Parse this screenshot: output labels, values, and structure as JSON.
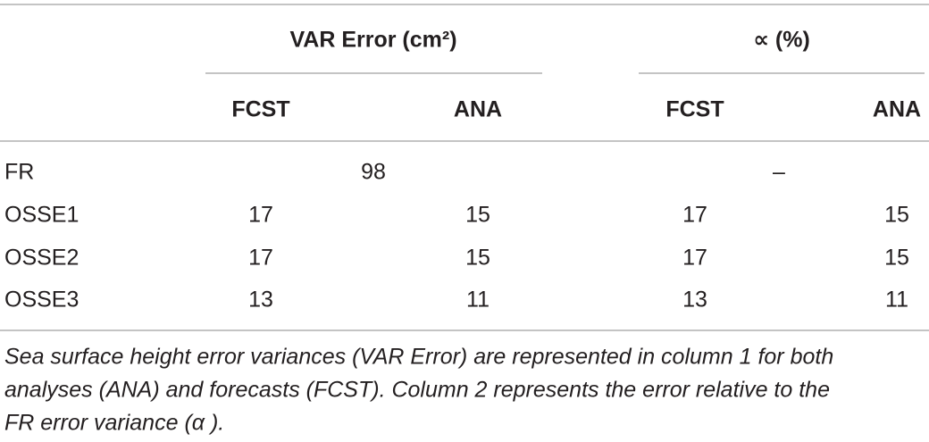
{
  "table": {
    "group_headers": [
      "VAR Error (cm²)",
      "∝ (%)"
    ],
    "column_headers": [
      "FCST",
      "ANA",
      "FCST",
      "ANA"
    ],
    "rows": [
      {
        "label": "FR",
        "spans": [
          "98",
          "–"
        ]
      },
      {
        "label": "OSSE1",
        "values": [
          17,
          15,
          17,
          15
        ]
      },
      {
        "label": "OSSE2",
        "values": [
          17,
          15,
          17,
          15
        ]
      },
      {
        "label": "OSSE3",
        "values": [
          13,
          11,
          13,
          11
        ]
      }
    ]
  },
  "caption": [
    "Sea surface height error variances (VAR Error) are represented in column 1 for both",
    "analyses (ANA) and forecasts (FCST). Column 2 represents the error relative to the",
    "FR error variance (α )."
  ]
}
